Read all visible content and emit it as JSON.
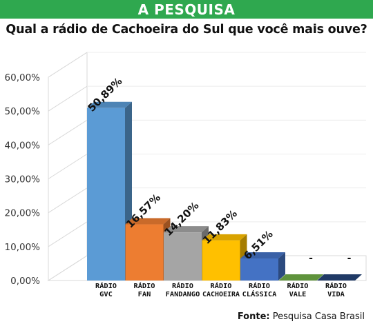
{
  "header": {
    "title": "A PESQUISA"
  },
  "question": "Qual a rádio de Cachoeira do Sul que você mais ouve?",
  "source": {
    "label": "Fonte:",
    "text": "Pesquisa Casa Brasil"
  },
  "chart_data": {
    "type": "bar",
    "style": "3d",
    "title": "",
    "xlabel": "",
    "ylabel": "",
    "ylim": [
      0,
      60
    ],
    "yticks": [
      "0,00%",
      "10,00%",
      "20,00%",
      "30,00%",
      "40,00%",
      "50,00%",
      "60,00%"
    ],
    "grid": true,
    "categories": [
      [
        "RÁDIO",
        "GVC"
      ],
      [
        "RÁDIO",
        "FAN"
      ],
      [
        "RÁDIO",
        "FANDANGO"
      ],
      [
        "RÁDIO",
        "CACHOEIRA"
      ],
      [
        "RÁDIO",
        "CLÁSSICA"
      ],
      [
        "RÁDIO",
        "VALE"
      ],
      [
        "RÁDIO",
        "VIDA"
      ]
    ],
    "values": [
      50.89,
      16.57,
      14.2,
      11.83,
      6.51,
      0,
      0
    ],
    "data_labels": [
      "50,89%",
      "16,57%",
      "14,20%",
      "11,83%",
      "6,51%",
      "-",
      "-"
    ],
    "colors": [
      "#5b9bd5",
      "#ed7d31",
      "#a5a5a5",
      "#ffc000",
      "#4472c4",
      "#70ad47",
      "#264478"
    ]
  }
}
